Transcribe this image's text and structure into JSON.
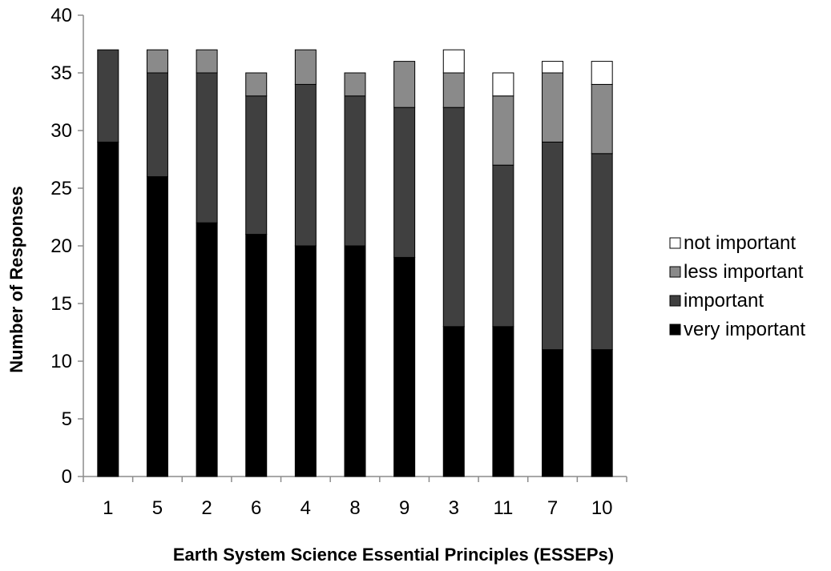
{
  "chart_data": {
    "type": "bar",
    "stacked": true,
    "categories": [
      "1",
      "5",
      "2",
      "6",
      "4",
      "8",
      "9",
      "3",
      "11",
      "7",
      "10"
    ],
    "series": [
      {
        "name": "very important",
        "color": "#000000",
        "values": [
          29,
          26,
          22,
          21,
          20,
          20,
          19,
          13,
          13,
          11,
          11
        ]
      },
      {
        "name": "important",
        "color": "#404040",
        "values": [
          8,
          9,
          13,
          12,
          14,
          13,
          13,
          19,
          14,
          18,
          17
        ]
      },
      {
        "name": "less important",
        "color": "#8a8a8a",
        "values": [
          0,
          2,
          2,
          2,
          3,
          2,
          4,
          3,
          6,
          6,
          6
        ]
      },
      {
        "name": "not important",
        "color": "#ffffff",
        "values": [
          0,
          0,
          0,
          0,
          0,
          0,
          0,
          2,
          2,
          1,
          2
        ]
      }
    ],
    "legend_order": [
      "not important",
      "less important",
      "important",
      "very important"
    ],
    "legend_position": "right",
    "xlabel": "Earth System Science Essential Principles (ESSEPs)",
    "ylabel": "Number of Responses",
    "ylim": [
      0,
      40
    ],
    "yticks": [
      0,
      5,
      10,
      15,
      20,
      25,
      30,
      35,
      40
    ],
    "grid": false
  }
}
